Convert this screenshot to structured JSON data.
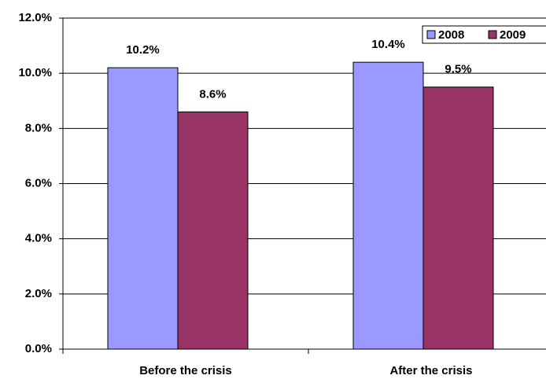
{
  "chart_data": {
    "type": "bar",
    "categories": [
      "Before the crisis",
      "After the crisis"
    ],
    "series": [
      {
        "name": "2008",
        "color": "#9999ff",
        "values": [
          10.2,
          10.4
        ],
        "value_labels": [
          "10.2%",
          "10.4%"
        ]
      },
      {
        "name": "2009",
        "color": "#993366",
        "values": [
          8.6,
          9.5
        ],
        "value_labels": [
          "8.6%",
          "9.5%"
        ]
      }
    ],
    "ylim": [
      0,
      12
    ],
    "yticks": [
      {
        "value": 0,
        "label": "0.0%"
      },
      {
        "value": 2,
        "label": "2.0%"
      },
      {
        "value": 4,
        "label": "4.0%"
      },
      {
        "value": 6,
        "label": "6.0%"
      },
      {
        "value": 8,
        "label": "8.0%"
      },
      {
        "value": 10,
        "label": "10.0%"
      },
      {
        "value": 12,
        "label": "12.0%"
      }
    ],
    "grid": true,
    "legend": "top-right"
  }
}
